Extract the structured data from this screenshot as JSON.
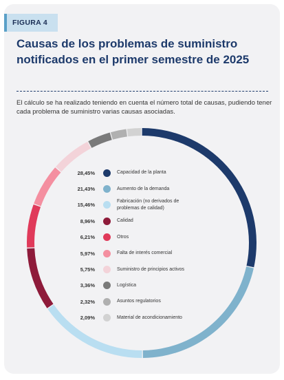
{
  "figure_tag": "FIGURA 4",
  "title": "Causas de los problemas de suministro notificados en el primer semestre de 2025",
  "subtitle": "El cálculo se ha realizado teniendo en cuenta el número total de causas, pudiendo tener cada problema de suministro varias causas asociadas.",
  "chart_data": {
    "type": "pie",
    "donut": true,
    "legend_placement": "inside",
    "series": [
      {
        "label": "Capacidad de la planta",
        "value": 28.45,
        "value_label": "28,45%",
        "color": "#1d3a6b"
      },
      {
        "label": "Aumento de la demanda",
        "value": 21.43,
        "value_label": "21,43%",
        "color": "#7fb2cc"
      },
      {
        "label": "Fabricación (no derivados de problemas de calidad)",
        "value": 15.46,
        "value_label": "15,46%",
        "color": "#b9def1"
      },
      {
        "label": "Calidad",
        "value": 8.96,
        "value_label": "8,96%",
        "color": "#8e1b3a"
      },
      {
        "label": "Otros",
        "value": 6.21,
        "value_label": "6,21%",
        "color": "#e03a5a"
      },
      {
        "label": "Falta de interés comercial",
        "value": 5.97,
        "value_label": "5,97%",
        "color": "#f48fa0"
      },
      {
        "label": "Suministro de principios activos",
        "value": 5.75,
        "value_label": "5,75%",
        "color": "#f3d3d9"
      },
      {
        "label": "Logística",
        "value": 3.36,
        "value_label": "3,36%",
        "color": "#7a7a7a"
      },
      {
        "label": "Asuntos regulatorios",
        "value": 2.32,
        "value_label": "2,32%",
        "color": "#b0b0b0"
      },
      {
        "label": "Material de acondicionamiento",
        "value": 2.09,
        "value_label": "2,09%",
        "color": "#d2d2d2"
      }
    ]
  }
}
